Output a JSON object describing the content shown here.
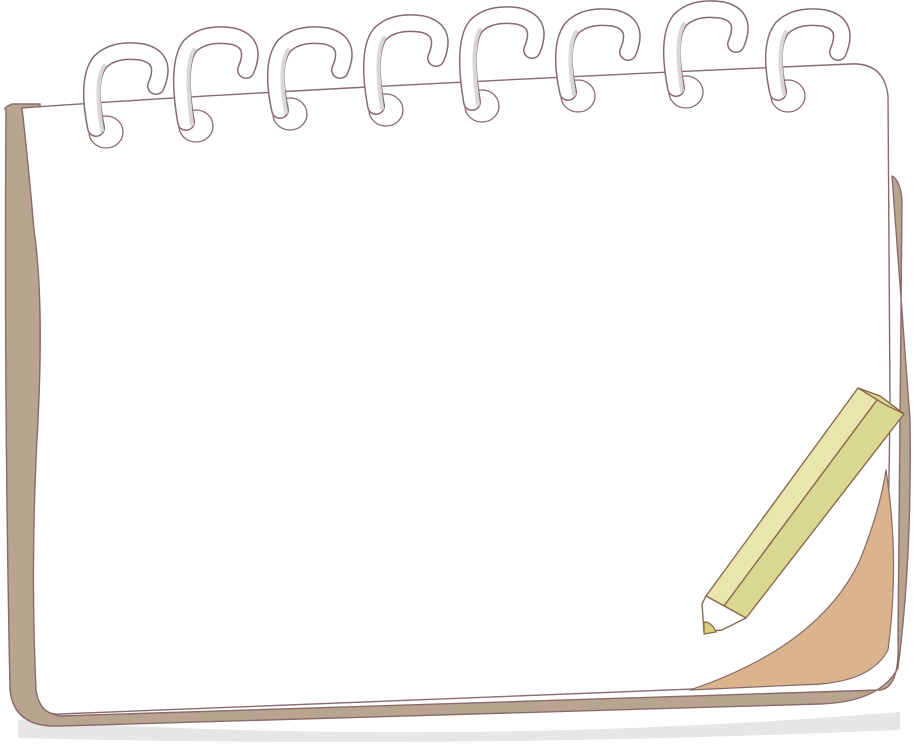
{
  "notepad": {
    "cover_color": "#b8a590",
    "page_color": "#ffffff",
    "outline_color": "#8a6a6a",
    "curl_color": "#d9b48c",
    "shadow_color": "#e6e6e6",
    "ring_color": "#ffffff",
    "ring_outline_color": "#8a6a6a",
    "ring_count": 8
  },
  "pencil": {
    "body_color": "#d9d890",
    "face_color": "#e8e6ac",
    "wood_color": "#ffffff",
    "lead_color": "#d8d07a",
    "outline_color": "#8a6a4e",
    "icon": "pencil-icon"
  }
}
